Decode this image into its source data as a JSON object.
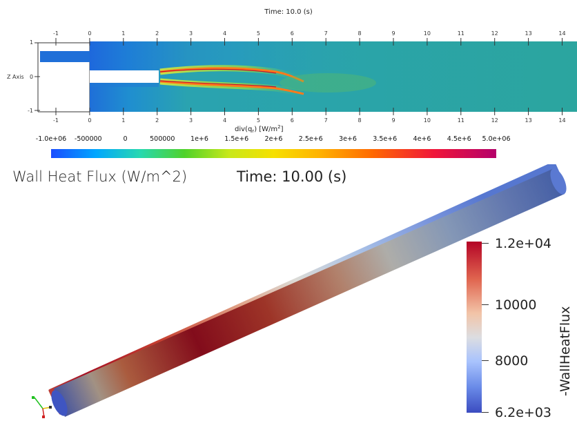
{
  "top_panel": {
    "time_label": "Time: 10.0 (s)",
    "x_ticks": [
      "-1",
      "0",
      "1",
      "2",
      "3",
      "4",
      "5",
      "6",
      "7",
      "8",
      "9",
      "10",
      "11",
      "12",
      "13",
      "14"
    ],
    "z_axis_label": "Z Axis",
    "z_ticks": [
      "1",
      "0",
      "-1"
    ],
    "x_axis_label": "div(q",
    "x_axis_label_sub": "r",
    "x_axis_label_units": ") [W/m",
    "x_axis_label_sup": "2",
    "x_axis_label_end": "]",
    "colorbar_ticks": [
      "-1.0e+06",
      "-500000",
      "0",
      "500000",
      "1e+6",
      "1.5e+6",
      "2e+6",
      "2.5e+6",
      "3e+6",
      "3.5e+6",
      "4e+6",
      "4.5e+6",
      "5.0e+06"
    ]
  },
  "bottom_panel": {
    "title": "Wall Heat Flux (W/m^2)",
    "time_label": "Time:  10.00 (s)",
    "legend_title": "-WallHeatFlux",
    "legend_labels": [
      "1.2e+04",
      "10000",
      "8000",
      "6.2e+03"
    ]
  },
  "colors": {
    "field_background": "#2aa8a0",
    "cool": "#3b4cc0",
    "warm": "#b40426"
  }
}
